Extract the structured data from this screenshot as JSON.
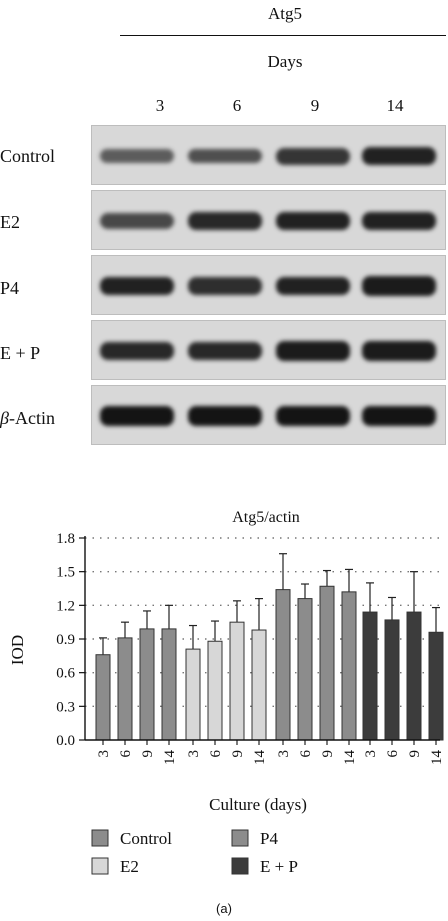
{
  "blot": {
    "protein": "Atg5",
    "days_label": "Days",
    "days": [
      "3",
      "6",
      "9",
      "14"
    ],
    "rows": [
      {
        "label": "Control",
        "intensity": [
          0.45,
          0.55,
          0.75,
          0.9
        ]
      },
      {
        "label": "E2",
        "intensity": [
          0.6,
          0.85,
          0.9,
          0.9
        ]
      },
      {
        "label": "P4",
        "intensity": [
          0.9,
          0.8,
          0.9,
          0.95
        ]
      },
      {
        "label": "E + P",
        "intensity": [
          0.85,
          0.85,
          0.95,
          0.95
        ]
      },
      {
        "label": "β-Actin",
        "italic_prefix": "β",
        "label_rest": "-Actin",
        "intensity": [
          1.0,
          1.0,
          1.0,
          1.0
        ]
      }
    ]
  },
  "chart_data": {
    "type": "bar",
    "title": "Atg5/actin",
    "ylabel": "IOD",
    "xlabel": "Culture (days)",
    "ylim": [
      0,
      1.8
    ],
    "yticks": [
      "0.0",
      "0.3",
      "0.6",
      "0.9",
      "1.2",
      "1.5",
      "1.8"
    ],
    "grid": "dotted horizontal",
    "categories": [
      "3",
      "6",
      "9",
      "14"
    ],
    "series": [
      {
        "name": "Control",
        "color": "#8c8c8c",
        "values": [
          0.76,
          0.91,
          0.99,
          0.99
        ],
        "errors": [
          0.15,
          0.14,
          0.16,
          0.21
        ]
      },
      {
        "name": "E2",
        "color": "#d7d7d7",
        "values": [
          0.81,
          0.88,
          1.05,
          0.98
        ],
        "errors": [
          0.21,
          0.18,
          0.19,
          0.28
        ]
      },
      {
        "name": "P4",
        "color": "#8c8c8c",
        "values": [
          1.34,
          1.26,
          1.37,
          1.32
        ],
        "errors": [
          0.32,
          0.13,
          0.14,
          0.2
        ]
      },
      {
        "name": "E + P",
        "color": "#3c3c3c",
        "values": [
          1.14,
          1.07,
          1.14,
          0.96
        ],
        "errors": [
          0.26,
          0.2,
          0.36,
          0.22
        ]
      }
    ],
    "legend": [
      "Control",
      "P4",
      "E2",
      "E + P"
    ],
    "legend_position": "bottom"
  },
  "caption": "(a)"
}
